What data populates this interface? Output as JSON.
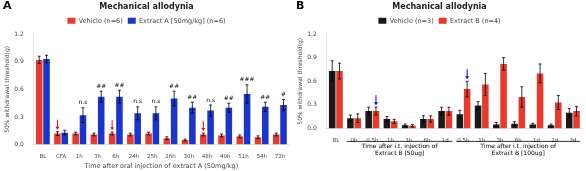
{
  "chart_data": [
    {
      "type": "bar",
      "panel_label": "A",
      "title": "Mechanical allodynia",
      "xlabel": "Time after oral injection of extract A (50mg/kg)",
      "ylabel": "50% withdrawal threshold(g)",
      "categories": [
        "BL",
        "CFA",
        "1h",
        "3h",
        "6h",
        "24h",
        "25h",
        "26h",
        "30h",
        "48h",
        "49h",
        "51h",
        "54h",
        "72h"
      ],
      "series": [
        {
          "name": "Vehicle (n=6)",
          "color": "#e8392a",
          "values": [
            0.92,
            0.12,
            0.12,
            0.11,
            0.12,
            0.11,
            0.12,
            0.07,
            0.05,
            0.11,
            0.1,
            0.09,
            0.08,
            0.11
          ],
          "errors": [
            0.04,
            0.02,
            0.015,
            0.015,
            0.015,
            0.015,
            0.015,
            0.015,
            0.01,
            0.015,
            0.015,
            0.015,
            0.015,
            0.015
          ]
        },
        {
          "name": "Extract A [50mg/kg] (n=6)",
          "color": "#1a35cc",
          "values": [
            0.93,
            0.13,
            0.32,
            0.52,
            0.52,
            0.34,
            0.34,
            0.5,
            0.4,
            0.37,
            0.4,
            0.55,
            0.41,
            0.43
          ],
          "errors": [
            0.04,
            0.025,
            0.08,
            0.06,
            0.07,
            0.07,
            0.07,
            0.08,
            0.06,
            0.06,
            0.05,
            0.1,
            0.05,
            0.06
          ]
        }
      ],
      "ylim": [
        0,
        1.2
      ],
      "yticks": [
        {
          "value": 0,
          "label": "0.0"
        },
        0.3,
        0.6,
        0.9,
        1.2
      ],
      "grid": false,
      "legend": "top",
      "annotations": [
        {
          "text": "n.s",
          "index": 2,
          "series": 1
        },
        {
          "text": "n.s",
          "index": 5,
          "series": 1
        },
        {
          "text": "n.s",
          "index": 6,
          "series": 1
        },
        {
          "text": "n.s",
          "index": 9,
          "series": 1
        },
        {
          "text": "##",
          "index": 3,
          "series": 1
        },
        {
          "text": "##",
          "index": 4,
          "series": 1
        },
        {
          "text": "##",
          "index": 7,
          "series": 1
        },
        {
          "text": "##",
          "index": 8,
          "series": 1
        },
        {
          "text": "##",
          "index": 10,
          "series": 1
        },
        {
          "text": "##",
          "index": 12,
          "series": 1
        },
        {
          "text": "###",
          "index": 11,
          "series": 1
        },
        {
          "text": "#",
          "index": 13,
          "series": 1
        }
      ],
      "arrows": [
        {
          "index": 1,
          "series": 0,
          "color": "red"
        },
        {
          "index": 4,
          "series": 0,
          "color": "red"
        },
        {
          "index": 9,
          "series": 0,
          "color": "red"
        }
      ]
    },
    {
      "type": "bar",
      "panel_label": "B",
      "title": "Mechanical allodynia",
      "ylabel": "50% withdrawal threshold(g)",
      "categories": [
        "BL",
        "0h",
        "0.5h",
        "1h",
        "3h",
        "6h",
        "1d",
        "0.5h",
        "1h",
        "3h",
        "6h",
        "1d",
        "2d",
        "3d"
      ],
      "series": [
        {
          "name": "Vehicle (n=3)",
          "color": "#1a1a1a",
          "values": [
            0.73,
            0.13,
            0.22,
            0.12,
            0.04,
            0.12,
            0.22,
            0.18,
            0.29,
            0.05,
            0.06,
            0.05,
            0.04,
            0.2
          ],
          "errors": [
            0.13,
            0.04,
            0.05,
            0.03,
            0.015,
            0.04,
            0.05,
            0.05,
            0.05,
            0.025,
            0.025,
            0.015,
            0.015,
            0.055
          ]
        },
        {
          "name": "Extract B (n=4)",
          "color": "#e8392a",
          "values": [
            0.73,
            0.13,
            0.22,
            0.09,
            0.035,
            0.12,
            0.22,
            0.5,
            0.56,
            0.82,
            0.4,
            0.7,
            0.33,
            0.22
          ],
          "errors": [
            0.1,
            0.055,
            0.05,
            0.025,
            0.015,
            0.04,
            0.05,
            0.1,
            0.14,
            0.08,
            0.13,
            0.12,
            0.09,
            0.06
          ]
        }
      ],
      "ylim": [
        0,
        1.2
      ],
      "yticks": [
        {
          "value": 0,
          "label": "0.0"
        },
        0.3,
        0.6,
        0.9,
        1.2
      ],
      "grid": false,
      "legend": "top",
      "arrows": [
        {
          "index": 2,
          "series": 1,
          "color": "blue"
        },
        {
          "index": 7,
          "series": 1,
          "color": "blue"
        }
      ],
      "brackets": [
        {
          "from": 1,
          "to": 6,
          "label": [
            "Time after i.t. injection of",
            "Extract B [50ug]"
          ]
        },
        {
          "from": 7,
          "to": 13,
          "label": [
            "Time after i.t. injection of",
            "Extract B [100ug]"
          ]
        }
      ]
    }
  ]
}
